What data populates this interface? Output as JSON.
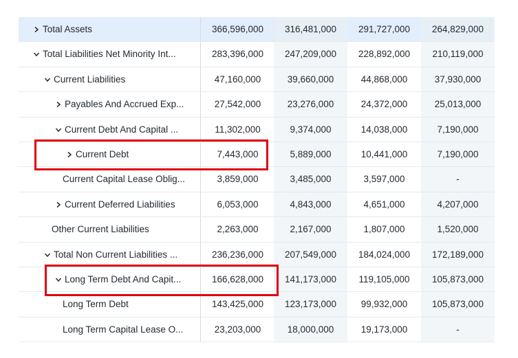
{
  "table": {
    "rows": [
      {
        "label": "Total Assets",
        "values": [
          "366,596,000",
          "316,481,000",
          "291,727,000",
          "264,829,000"
        ]
      },
      {
        "label": "Total Liabilities Net Minority Int...",
        "values": [
          "283,396,000",
          "247,209,000",
          "228,892,000",
          "210,119,000"
        ]
      },
      {
        "label": "Current Liabilities",
        "values": [
          "47,160,000",
          "39,660,000",
          "44,868,000",
          "37,930,000"
        ]
      },
      {
        "label": "Payables And Accrued Exp...",
        "values": [
          "27,542,000",
          "23,276,000",
          "24,372,000",
          "25,013,000"
        ]
      },
      {
        "label": "Current Debt And Capital ...",
        "values": [
          "11,302,000",
          "9,374,000",
          "14,038,000",
          "7,190,000"
        ]
      },
      {
        "label": "Current Debt",
        "values": [
          "7,443,000",
          "5,889,000",
          "10,441,000",
          "7,190,000"
        ]
      },
      {
        "label": "Current Capital Lease Oblig...",
        "values": [
          "3,859,000",
          "3,485,000",
          "3,597,000",
          "-"
        ]
      },
      {
        "label": "Current Deferred Liabilities",
        "values": [
          "6,053,000",
          "4,843,000",
          "4,651,000",
          "4,207,000"
        ]
      },
      {
        "label": "Other Current Liabilities",
        "values": [
          "2,263,000",
          "2,167,000",
          "1,807,000",
          "1,520,000"
        ]
      },
      {
        "label": "Total Non Current Liabilities ...",
        "values": [
          "236,236,000",
          "207,549,000",
          "184,024,000",
          "172,189,000"
        ]
      },
      {
        "label": "Long Term Debt And Capit...",
        "values": [
          "166,628,000",
          "141,173,000",
          "119,105,000",
          "105,873,000"
        ]
      },
      {
        "label": "Long Term Debt",
        "values": [
          "143,425,000",
          "123,173,000",
          "99,932,000",
          "105,873,000"
        ]
      },
      {
        "label": "Long Term Capital Lease O...",
        "values": [
          "23,203,000",
          "18,000,000",
          "19,173,000",
          "-"
        ]
      }
    ]
  }
}
